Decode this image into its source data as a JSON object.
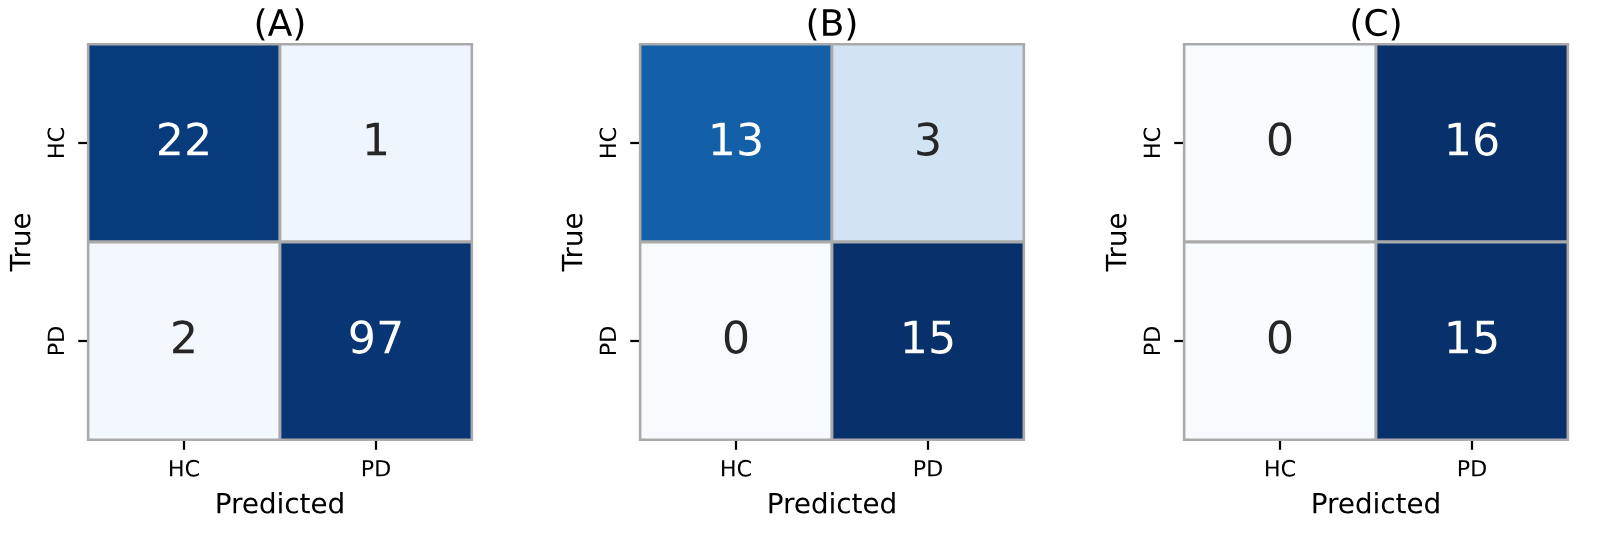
{
  "chart_data": [
    {
      "type": "heatmap",
      "title": "(A)",
      "xlabel": "Predicted",
      "ylabel": "True",
      "categories": [
        "HC",
        "PD"
      ],
      "y_categories": [
        "HC",
        "PD"
      ],
      "cells": [
        [
          22,
          1
        ],
        [
          2,
          97
        ]
      ],
      "data_labels": true
    },
    {
      "type": "heatmap",
      "title": "(B)",
      "xlabel": "Predicted",
      "ylabel": "True",
      "categories": [
        "HC",
        "PD"
      ],
      "y_categories": [
        "HC",
        "PD"
      ],
      "cells": [
        [
          13,
          3
        ],
        [
          0,
          15
        ]
      ],
      "data_labels": true
    },
    {
      "type": "heatmap",
      "title": "(C)",
      "xlabel": "Predicted",
      "ylabel": "True",
      "categories": [
        "HC",
        "PD"
      ],
      "y_categories": [
        "HC",
        "PD"
      ],
      "cells": [
        [
          0,
          16
        ],
        [
          0,
          15
        ]
      ],
      "data_labels": true
    }
  ]
}
